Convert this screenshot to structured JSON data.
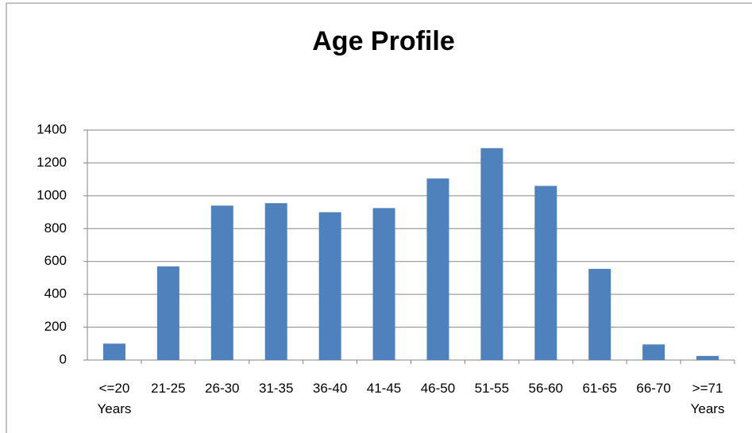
{
  "chart_data": {
    "type": "bar",
    "title": "Age Profile",
    "categories": [
      "<=20 Years",
      "21-25",
      "26-30",
      "31-35",
      "36-40",
      "41-45",
      "46-50",
      "51-55",
      "56-60",
      "61-65",
      "66-70",
      ">=71 Years"
    ],
    "values": [
      100,
      570,
      940,
      955,
      900,
      925,
      1105,
      1290,
      1060,
      555,
      95,
      25
    ],
    "color": "#4f81bd",
    "ylim": [
      0,
      1400
    ],
    "yticks": [
      0,
      200,
      400,
      600,
      800,
      1000,
      1200,
      1400
    ],
    "grid": true
  }
}
